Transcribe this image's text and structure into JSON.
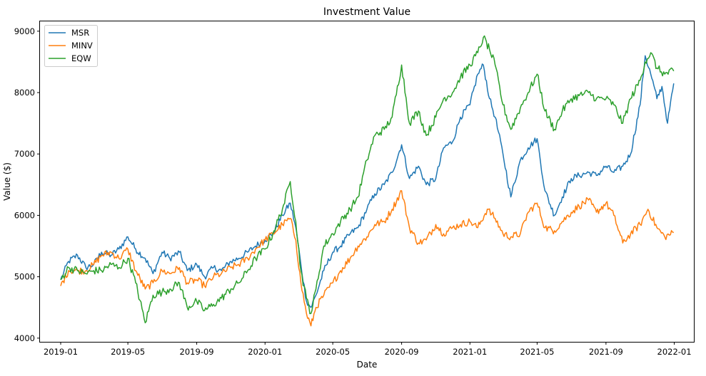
{
  "chart_data": {
    "type": "line",
    "title": "Investment Value",
    "xlabel": "Date",
    "ylabel": "Value ($)",
    "x_range": [
      "2018-11-25",
      "2022-02-05"
    ],
    "ylim": [
      3940,
      9160
    ],
    "x_ticks": [
      {
        "date": "2019-01-01",
        "label": "2019-01"
      },
      {
        "date": "2019-05-01",
        "label": "2019-05"
      },
      {
        "date": "2019-09-01",
        "label": "2019-09"
      },
      {
        "date": "2020-01-01",
        "label": "2020-01"
      },
      {
        "date": "2020-05-01",
        "label": "2020-05"
      },
      {
        "date": "2020-09-01",
        "label": "2020-09"
      },
      {
        "date": "2021-01-01",
        "label": "2021-01"
      },
      {
        "date": "2021-05-01",
        "label": "2021-05"
      },
      {
        "date": "2021-09-01",
        "label": "2021-09"
      },
      {
        "date": "2022-01-01",
        "label": "2022-01"
      }
    ],
    "y_ticks": [
      {
        "value": 4000,
        "label": "4000"
      },
      {
        "value": 5000,
        "label": "5000"
      },
      {
        "value": 6000,
        "label": "6000"
      },
      {
        "value": 7000,
        "label": "7000"
      },
      {
        "value": 8000,
        "label": "8000"
      },
      {
        "value": 9000,
        "label": "9000"
      }
    ],
    "grid": false,
    "legend_position": "top-left",
    "series": [
      {
        "name": "MSR",
        "color": "#1f77b4",
        "points": [
          [
            "2019-01-01",
            4950
          ],
          [
            "2019-01-15",
            5250
          ],
          [
            "2019-01-31",
            5350
          ],
          [
            "2019-02-15",
            5150
          ],
          [
            "2019-03-01",
            5200
          ],
          [
            "2019-03-15",
            5400
          ],
          [
            "2019-04-01",
            5350
          ],
          [
            "2019-04-15",
            5450
          ],
          [
            "2019-05-01",
            5650
          ],
          [
            "2019-05-15",
            5450
          ],
          [
            "2019-06-01",
            5300
          ],
          [
            "2019-06-15",
            5050
          ],
          [
            "2019-07-01",
            5400
          ],
          [
            "2019-07-15",
            5300
          ],
          [
            "2019-08-01",
            5400
          ],
          [
            "2019-08-15",
            5100
          ],
          [
            "2019-09-01",
            5200
          ],
          [
            "2019-09-15",
            5000
          ],
          [
            "2019-10-01",
            5150
          ],
          [
            "2019-10-15",
            5100
          ],
          [
            "2019-11-01",
            5250
          ],
          [
            "2019-11-15",
            5300
          ],
          [
            "2019-12-01",
            5400
          ],
          [
            "2019-12-15",
            5500
          ],
          [
            "2020-01-01",
            5600
          ],
          [
            "2020-01-15",
            5700
          ],
          [
            "2020-02-01",
            6000
          ],
          [
            "2020-02-15",
            6200
          ],
          [
            "2020-02-25",
            5800
          ],
          [
            "2020-03-05",
            5200
          ],
          [
            "2020-03-15",
            4600
          ],
          [
            "2020-03-23",
            4500
          ],
          [
            "2020-04-01",
            4700
          ],
          [
            "2020-04-15",
            5100
          ],
          [
            "2020-05-01",
            5400
          ],
          [
            "2020-05-15",
            5500
          ],
          [
            "2020-06-01",
            5700
          ],
          [
            "2020-06-15",
            5800
          ],
          [
            "2020-07-01",
            6100
          ],
          [
            "2020-07-15",
            6350
          ],
          [
            "2020-08-01",
            6500
          ],
          [
            "2020-08-15",
            6700
          ],
          [
            "2020-09-01",
            7150
          ],
          [
            "2020-09-15",
            6600
          ],
          [
            "2020-10-01",
            6800
          ],
          [
            "2020-10-15",
            6500
          ],
          [
            "2020-11-01",
            6600
          ],
          [
            "2020-11-15",
            7100
          ],
          [
            "2020-12-01",
            7200
          ],
          [
            "2020-12-15",
            7600
          ],
          [
            "2021-01-01",
            7800
          ],
          [
            "2021-01-15",
            8300
          ],
          [
            "2021-01-25",
            8450
          ],
          [
            "2021-02-05",
            7900
          ],
          [
            "2021-02-15",
            7600
          ],
          [
            "2021-03-01",
            7000
          ],
          [
            "2021-03-15",
            6300
          ],
          [
            "2021-04-01",
            6900
          ],
          [
            "2021-04-15",
            7100
          ],
          [
            "2021-05-01",
            7250
          ],
          [
            "2021-05-15",
            6400
          ],
          [
            "2021-06-01",
            6000
          ],
          [
            "2021-06-15",
            6300
          ],
          [
            "2021-07-01",
            6600
          ],
          [
            "2021-07-15",
            6650
          ],
          [
            "2021-08-01",
            6700
          ],
          [
            "2021-08-15",
            6650
          ],
          [
            "2021-09-01",
            6800
          ],
          [
            "2021-09-15",
            6700
          ],
          [
            "2021-10-01",
            6800
          ],
          [
            "2021-10-15",
            7000
          ],
          [
            "2021-11-01",
            7800
          ],
          [
            "2021-11-10",
            8600
          ],
          [
            "2021-11-20",
            8300
          ],
          [
            "2021-12-01",
            7900
          ],
          [
            "2021-12-10",
            8100
          ],
          [
            "2021-12-20",
            7500
          ],
          [
            "2021-12-31",
            8150
          ]
        ]
      },
      {
        "name": "MINV",
        "color": "#ff7f0e",
        "points": [
          [
            "2019-01-01",
            4850
          ],
          [
            "2019-01-15",
            5100
          ],
          [
            "2019-01-31",
            5100
          ],
          [
            "2019-02-15",
            5100
          ],
          [
            "2019-03-01",
            5200
          ],
          [
            "2019-03-15",
            5350
          ],
          [
            "2019-04-01",
            5400
          ],
          [
            "2019-04-15",
            5300
          ],
          [
            "2019-05-01",
            5450
          ],
          [
            "2019-05-15",
            5100
          ],
          [
            "2019-06-01",
            4800
          ],
          [
            "2019-06-15",
            4900
          ],
          [
            "2019-07-01",
            5100
          ],
          [
            "2019-07-15",
            5050
          ],
          [
            "2019-08-01",
            5150
          ],
          [
            "2019-08-15",
            4900
          ],
          [
            "2019-09-01",
            4950
          ],
          [
            "2019-09-15",
            4850
          ],
          [
            "2019-10-01",
            5000
          ],
          [
            "2019-10-15",
            5050
          ],
          [
            "2019-11-01",
            5150
          ],
          [
            "2019-11-15",
            5200
          ],
          [
            "2019-12-01",
            5300
          ],
          [
            "2019-12-15",
            5450
          ],
          [
            "2020-01-01",
            5600
          ],
          [
            "2020-01-15",
            5700
          ],
          [
            "2020-02-01",
            5850
          ],
          [
            "2020-02-15",
            5950
          ],
          [
            "2020-02-25",
            5600
          ],
          [
            "2020-03-05",
            4900
          ],
          [
            "2020-03-15",
            4400
          ],
          [
            "2020-03-23",
            4200
          ],
          [
            "2020-04-01",
            4500
          ],
          [
            "2020-04-15",
            4700
          ],
          [
            "2020-05-01",
            4900
          ],
          [
            "2020-05-15",
            5100
          ],
          [
            "2020-06-01",
            5300
          ],
          [
            "2020-06-15",
            5500
          ],
          [
            "2020-07-01",
            5650
          ],
          [
            "2020-07-15",
            5850
          ],
          [
            "2020-08-01",
            5900
          ],
          [
            "2020-08-15",
            6100
          ],
          [
            "2020-09-01",
            6400
          ],
          [
            "2020-09-15",
            5800
          ],
          [
            "2020-10-01",
            5550
          ],
          [
            "2020-10-15",
            5600
          ],
          [
            "2020-11-01",
            5850
          ],
          [
            "2020-11-15",
            5700
          ],
          [
            "2020-12-01",
            5800
          ],
          [
            "2020-12-15",
            5850
          ],
          [
            "2021-01-01",
            5900
          ],
          [
            "2021-01-15",
            5800
          ],
          [
            "2021-02-01",
            6100
          ],
          [
            "2021-02-15",
            5950
          ],
          [
            "2021-03-01",
            5700
          ],
          [
            "2021-03-15",
            5650
          ],
          [
            "2021-04-01",
            5700
          ],
          [
            "2021-04-15",
            6050
          ],
          [
            "2021-05-01",
            6200
          ],
          [
            "2021-05-15",
            5800
          ],
          [
            "2021-06-01",
            5750
          ],
          [
            "2021-06-15",
            5900
          ],
          [
            "2021-07-01",
            6050
          ],
          [
            "2021-07-15",
            6150
          ],
          [
            "2021-08-01",
            6250
          ],
          [
            "2021-08-15",
            6050
          ],
          [
            "2021-09-01",
            6200
          ],
          [
            "2021-09-15",
            6000
          ],
          [
            "2021-10-01",
            5550
          ],
          [
            "2021-10-15",
            5700
          ],
          [
            "2021-11-01",
            5850
          ],
          [
            "2021-11-15",
            6100
          ],
          [
            "2021-12-01",
            5800
          ],
          [
            "2021-12-15",
            5650
          ],
          [
            "2021-12-31",
            5720
          ]
        ]
      },
      {
        "name": "EQW",
        "color": "#2ca02c",
        "points": [
          [
            "2019-01-01",
            4950
          ],
          [
            "2019-01-15",
            5150
          ],
          [
            "2019-01-31",
            5100
          ],
          [
            "2019-02-15",
            5050
          ],
          [
            "2019-03-01",
            5100
          ],
          [
            "2019-03-15",
            5100
          ],
          [
            "2019-04-01",
            5200
          ],
          [
            "2019-04-15",
            5150
          ],
          [
            "2019-05-01",
            5300
          ],
          [
            "2019-05-15",
            4900
          ],
          [
            "2019-06-01",
            4250
          ],
          [
            "2019-06-15",
            4700
          ],
          [
            "2019-07-01",
            4750
          ],
          [
            "2019-07-15",
            4800
          ],
          [
            "2019-08-01",
            4900
          ],
          [
            "2019-08-15",
            4500
          ],
          [
            "2019-09-01",
            4600
          ],
          [
            "2019-09-15",
            4450
          ],
          [
            "2019-10-01",
            4550
          ],
          [
            "2019-10-15",
            4650
          ],
          [
            "2019-11-01",
            4800
          ],
          [
            "2019-11-15",
            4900
          ],
          [
            "2019-12-01",
            5100
          ],
          [
            "2019-12-15",
            5300
          ],
          [
            "2020-01-01",
            5450
          ],
          [
            "2020-01-15",
            5700
          ],
          [
            "2020-02-01",
            6100
          ],
          [
            "2020-02-15",
            6550
          ],
          [
            "2020-02-25",
            5900
          ],
          [
            "2020-03-05",
            5100
          ],
          [
            "2020-03-15",
            4650
          ],
          [
            "2020-03-23",
            4400
          ],
          [
            "2020-04-01",
            4800
          ],
          [
            "2020-04-15",
            5500
          ],
          [
            "2020-05-01",
            5700
          ],
          [
            "2020-05-15",
            5900
          ],
          [
            "2020-06-01",
            6100
          ],
          [
            "2020-06-15",
            6300
          ],
          [
            "2020-07-01",
            6900
          ],
          [
            "2020-07-15",
            7300
          ],
          [
            "2020-08-01",
            7400
          ],
          [
            "2020-08-15",
            7600
          ],
          [
            "2020-09-01",
            8450
          ],
          [
            "2020-09-15",
            7500
          ],
          [
            "2020-10-01",
            7700
          ],
          [
            "2020-10-15",
            7300
          ],
          [
            "2020-11-01",
            7600
          ],
          [
            "2020-11-15",
            7900
          ],
          [
            "2020-12-01",
            8000
          ],
          [
            "2020-12-15",
            8250
          ],
          [
            "2021-01-01",
            8450
          ],
          [
            "2021-01-15",
            8650
          ],
          [
            "2021-01-25",
            8900
          ],
          [
            "2021-02-05",
            8700
          ],
          [
            "2021-02-15",
            8450
          ],
          [
            "2021-03-01",
            7800
          ],
          [
            "2021-03-15",
            7400
          ],
          [
            "2021-04-01",
            7750
          ],
          [
            "2021-04-15",
            8000
          ],
          [
            "2021-05-01",
            8300
          ],
          [
            "2021-05-15",
            7700
          ],
          [
            "2021-06-01",
            7400
          ],
          [
            "2021-06-15",
            7700
          ],
          [
            "2021-07-01",
            7900
          ],
          [
            "2021-07-15",
            7950
          ],
          [
            "2021-08-01",
            8000
          ],
          [
            "2021-08-15",
            7900
          ],
          [
            "2021-09-01",
            7900
          ],
          [
            "2021-09-15",
            7800
          ],
          [
            "2021-10-01",
            7500
          ],
          [
            "2021-10-15",
            7900
          ],
          [
            "2021-11-01",
            8200
          ],
          [
            "2021-11-10",
            8500
          ],
          [
            "2021-11-20",
            8650
          ],
          [
            "2021-12-01",
            8400
          ],
          [
            "2021-12-15",
            8300
          ],
          [
            "2021-12-31",
            8350
          ]
        ]
      }
    ]
  }
}
